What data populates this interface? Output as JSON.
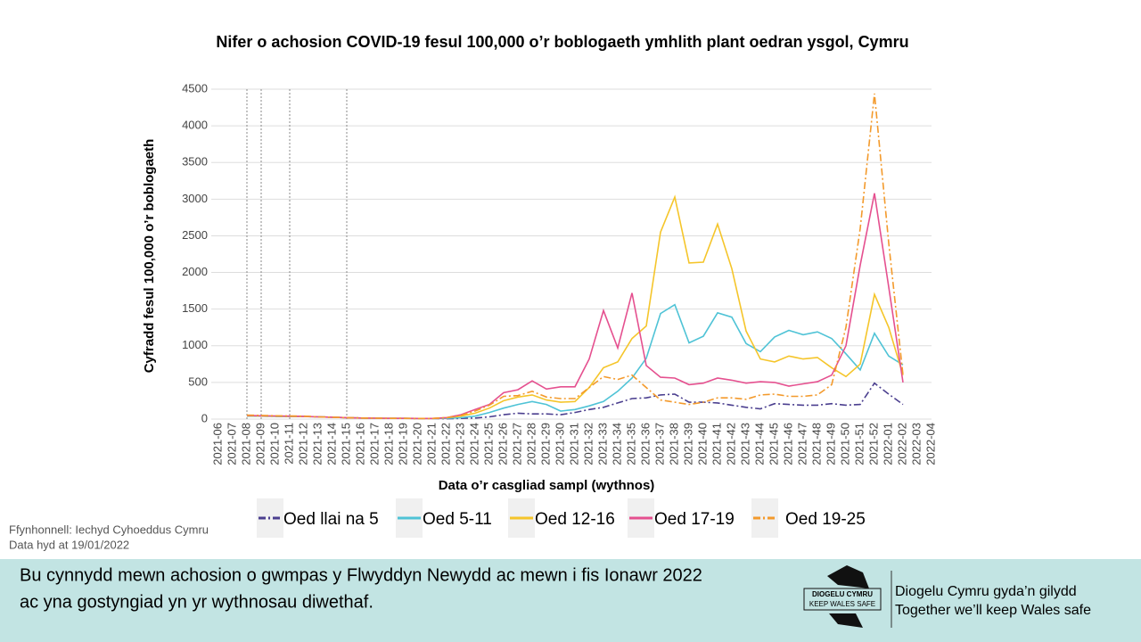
{
  "chart_data": {
    "type": "line",
    "title": "Nifer o achosion COVID-19 fesul 100,000 o’r boblogaeth ymhlith plant oedran ysgol, Cymru",
    "x_label": "Data o’r casgliad sampl (wythnos)",
    "y_label": "Cyfradd fesul 100,000 o’r boblogaeth",
    "categories": [
      "2021-06",
      "2021-07",
      "2021-08",
      "2021-09",
      "2021-10",
      "2021-11",
      "2021-12",
      "2021-13",
      "2021-14",
      "2021-15",
      "2021-16",
      "2021-17",
      "2021-18",
      "2021-19",
      "2021-20",
      "2021-21",
      "2021-22",
      "2021-23",
      "2021-24",
      "2021-25",
      "2021-26",
      "2021-27",
      "2021-28",
      "2021-29",
      "2021-30",
      "2021-31",
      "2021-32",
      "2021-33",
      "2021-34",
      "2021-35",
      "2021-36",
      "2021-37",
      "2021-38",
      "2021-39",
      "2021-40",
      "2021-41",
      "2021-42",
      "2021-43",
      "2021-44",
      "2021-45",
      "2021-46",
      "2021-47",
      "2021-48",
      "2021-49",
      "2021-50",
      "2021-51",
      "2021-52",
      "2022-01",
      "2022-02",
      "2022-03",
      "2022-04"
    ],
    "reference_lines": [
      "2021-08",
      "2021-09",
      "2021-11",
      "2021-15"
    ],
    "series": [
      {
        "name": "Oed llai na 5",
        "color": "#4b3f8f",
        "dash": "dashdot",
        "values": [
          null,
          null,
          40,
          40,
          38,
          35,
          35,
          30,
          25,
          20,
          15,
          12,
          10,
          10,
          8,
          8,
          5,
          10,
          15,
          30,
          60,
          80,
          70,
          70,
          60,
          90,
          130,
          160,
          220,
          280,
          290,
          330,
          340,
          230,
          230,
          220,
          190,
          160,
          140,
          210,
          200,
          190,
          190,
          210,
          190,
          200,
          490,
          340,
          200,
          null,
          null
        ]
      },
      {
        "name": "Oed 5-11",
        "color": "#4fc3d6",
        "dash": "solid",
        "values": [
          null,
          null,
          40,
          40,
          38,
          35,
          35,
          30,
          25,
          20,
          15,
          12,
          10,
          10,
          8,
          8,
          10,
          20,
          40,
          90,
          150,
          200,
          240,
          200,
          110,
          130,
          180,
          240,
          380,
          560,
          830,
          1440,
          1560,
          1040,
          1130,
          1450,
          1390,
          1030,
          920,
          1120,
          1210,
          1150,
          1190,
          1100,
          890,
          670,
          1170,
          860,
          740,
          null,
          null
        ]
      },
      {
        "name": "Oed 12-16",
        "color": "#f5c52a",
        "dash": "solid",
        "values": [
          null,
          null,
          45,
          42,
          40,
          38,
          35,
          30,
          25,
          20,
          15,
          12,
          10,
          10,
          8,
          8,
          20,
          40,
          80,
          150,
          250,
          300,
          330,
          260,
          230,
          240,
          430,
          700,
          780,
          1100,
          1270,
          2550,
          3030,
          2130,
          2140,
          2660,
          2050,
          1200,
          820,
          780,
          860,
          820,
          840,
          700,
          580,
          750,
          1700,
          1250,
          600,
          null,
          null
        ]
      },
      {
        "name": "Oed 17-19",
        "color": "#e5508f",
        "dash": "solid",
        "values": [
          null,
          null,
          50,
          45,
          42,
          40,
          38,
          30,
          25,
          20,
          15,
          12,
          10,
          10,
          8,
          8,
          20,
          60,
          130,
          200,
          360,
          400,
          520,
          410,
          440,
          440,
          820,
          1480,
          970,
          1720,
          730,
          570,
          560,
          470,
          490,
          560,
          530,
          490,
          510,
          500,
          450,
          480,
          510,
          600,
          1000,
          2100,
          3080,
          1800,
          500,
          null,
          null
        ]
      },
      {
        "name": "Oed 19-25",
        "color": "#f39a2c",
        "dash": "dashdot",
        "values": [
          null,
          null,
          55,
          50,
          45,
          42,
          40,
          30,
          25,
          20,
          15,
          12,
          10,
          10,
          8,
          8,
          20,
          50,
          110,
          190,
          310,
          320,
          380,
          300,
          280,
          280,
          430,
          580,
          540,
          600,
          430,
          260,
          230,
          200,
          230,
          290,
          290,
          270,
          330,
          340,
          310,
          310,
          330,
          470,
          1250,
          2600,
          4440,
          2400,
          600,
          null,
          null
        ]
      }
    ],
    "ylim": [
      0,
      4500
    ],
    "yticks": [
      0,
      500,
      1000,
      1500,
      2000,
      2500,
      3000,
      3500,
      4000,
      4500
    ],
    "grid": true,
    "legend": "bottom"
  },
  "source": [
    "Ffynhonnell: Iechyd Cyhoeddus Cymru",
    "Data hyd at 19/01/2022"
  ],
  "footer": {
    "message": [
      "Bu cynnydd mewn achosion o gwmpas y Flwyddyn Newydd ac mewn i fis Ionawr 2022",
      "ac yna gostyngiad yn yr wythnosau diwethaf."
    ],
    "logo": [
      "DIOGELU CYMRU",
      "KEEP WALES SAFE"
    ],
    "slogan": [
      "Diogelu Cymru gyda’n gilydd",
      "Together we’ll keep Wales safe"
    ]
  }
}
